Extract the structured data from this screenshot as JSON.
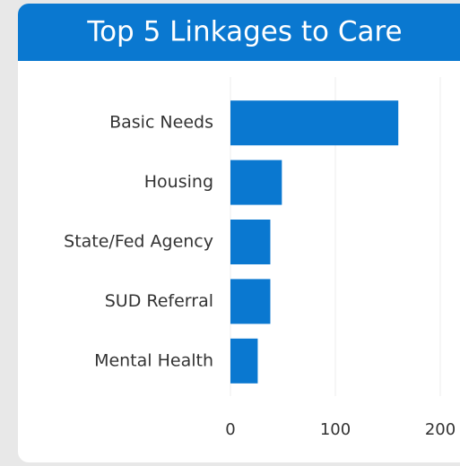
{
  "chart_data": {
    "type": "bar",
    "orientation": "horizontal",
    "title": "Top 5 Linkages to Care",
    "categories": [
      "Basic Needs",
      "Housing",
      "State/Fed Agency",
      "SUD Referral",
      "Mental Health"
    ],
    "values": [
      160,
      49,
      38,
      38,
      26
    ],
    "color": "#0a78d0",
    "xlim": [
      0,
      200
    ],
    "xticks": [
      0,
      100,
      200
    ],
    "grid": true
  }
}
